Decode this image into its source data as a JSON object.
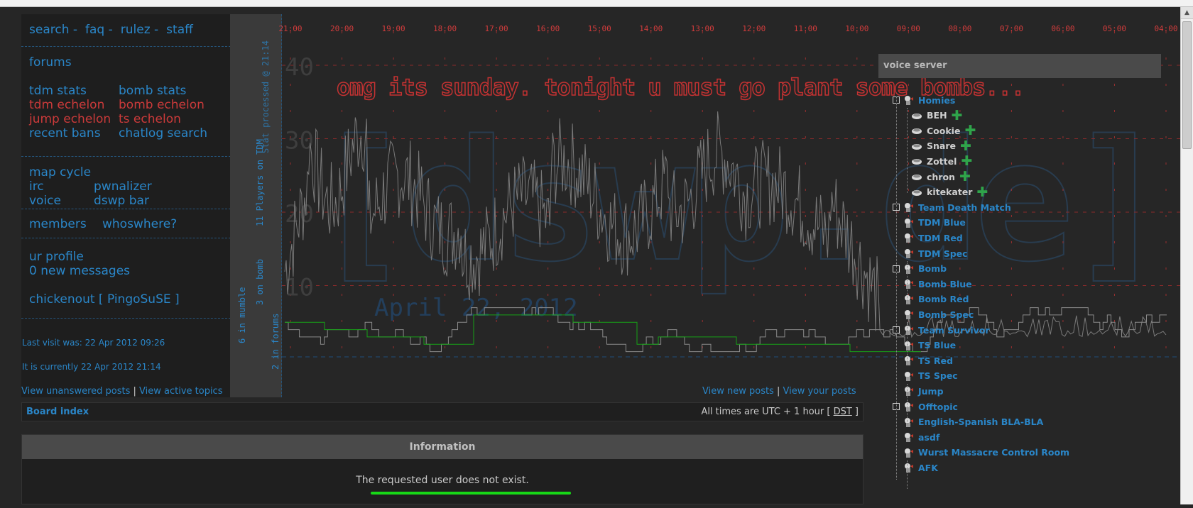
{
  "nav": {
    "row1": [
      "search -",
      "faq -",
      "rulez -",
      "staff"
    ],
    "forums": "forums",
    "tdm_stats": "tdm stats",
    "bomb_stats": "bomb stats",
    "tdm_echelon": "tdm echelon",
    "bomb_echelon": "bomb echelon",
    "jump_echelon": "jump echelon",
    "ts_echelon": "ts echelon",
    "recent_bans": "recent bans",
    "chatlog_search": "chatlog search",
    "map_cycle": "map cycle",
    "irc": "irc",
    "pwnalizer": "pwnalizer",
    "voice": "voice",
    "dswp_bar": "dswp bar",
    "members": "members",
    "whoswhere": "whoswhere?",
    "ur_profile": "ur profile",
    "new_messages": "0 new messages",
    "user": "chickenout [ PingoSuSE ]",
    "last_visit": "Last visit was: 22 Apr 2012 09:26",
    "current_time": "It is currently 22 Apr 2012 21:14"
  },
  "status_bar": {
    "processed": "Stat processed @ 21:14",
    "tdm_players": "11 Players on TDM",
    "bomb": "3 on bomb",
    "mumble": "6 in mumble",
    "forums": "2 in forums"
  },
  "chart_data": {
    "type": "line",
    "x_ticks": [
      "21:00",
      "20:00",
      "19:00",
      "18:00",
      "17:00",
      "16:00",
      "15:00",
      "14:00",
      "13:00",
      "12:00",
      "11:00",
      "10:00",
      "09:00",
      "08:00",
      "07:00",
      "06:00",
      "05:00",
      "04:00"
    ],
    "y_ticks": [
      40,
      30,
      20,
      10
    ],
    "ylim": [
      0,
      40
    ],
    "watermark": "[dswp.de]",
    "date": "April 22, 2012",
    "series": [
      {
        "color": "#7a7a7a"
      },
      {
        "color": "#8a8a8a"
      },
      {
        "color": "#16a016"
      }
    ]
  },
  "motd": "omg its sunday. tonight u must go plant some bombs...",
  "voice": {
    "title": "voice server",
    "tree": [
      {
        "type": "chan",
        "label": "Homies",
        "depth": 0,
        "box": true
      },
      {
        "type": "user",
        "label": "BEH",
        "depth": 1
      },
      {
        "type": "user",
        "label": "Cookie",
        "depth": 1
      },
      {
        "type": "user",
        "label": "Snare",
        "depth": 1
      },
      {
        "type": "user",
        "label": "Zottel",
        "depth": 1
      },
      {
        "type": "user",
        "label": "chron",
        "depth": 1
      },
      {
        "type": "user",
        "label": "kitekater",
        "depth": 1
      },
      {
        "type": "chan",
        "label": "Team Death Match",
        "depth": 0,
        "box": true
      },
      {
        "type": "chan",
        "label": "TDM Blue",
        "depth": 1
      },
      {
        "type": "chan",
        "label": "TDM Red",
        "depth": 1
      },
      {
        "type": "chan",
        "label": "TDM Spec",
        "depth": 1
      },
      {
        "type": "chan",
        "label": "Bomb",
        "depth": 0,
        "box": true
      },
      {
        "type": "chan",
        "label": "Bomb Blue",
        "depth": 1
      },
      {
        "type": "chan",
        "label": "Bomb Red",
        "depth": 1
      },
      {
        "type": "chan",
        "label": "Bomb Spec",
        "depth": 1
      },
      {
        "type": "chan",
        "label": "Team Survivor",
        "depth": 0,
        "box": true
      },
      {
        "type": "chan",
        "label": "TS Blue",
        "depth": 1
      },
      {
        "type": "chan",
        "label": "TS Red",
        "depth": 1
      },
      {
        "type": "chan",
        "label": "TS Spec",
        "depth": 1
      },
      {
        "type": "chan",
        "label": "Jump",
        "depth": 0
      },
      {
        "type": "chan",
        "label": "Offtopic",
        "depth": 0,
        "box": true
      },
      {
        "type": "chan",
        "label": "English-Spanish BLA-BLA",
        "depth": 1
      },
      {
        "type": "chan",
        "label": "asdf",
        "depth": 1
      },
      {
        "type": "chan",
        "label": "Wurst Massacre Control Room",
        "depth": 0
      },
      {
        "type": "chan",
        "label": "AFK",
        "depth": 0
      }
    ]
  },
  "links": {
    "unanswered": "View unanswered posts",
    "active": "View active topics",
    "new_posts": "View new posts",
    "your_posts": "View your posts"
  },
  "breadcrumb": {
    "board_index": "Board index",
    "tz_prefix": "All times are UTC + 1 hour [ ",
    "dst": "DST",
    "tz_suffix": " ]"
  },
  "info": {
    "title": "Information",
    "message": "The requested user does not exist."
  }
}
